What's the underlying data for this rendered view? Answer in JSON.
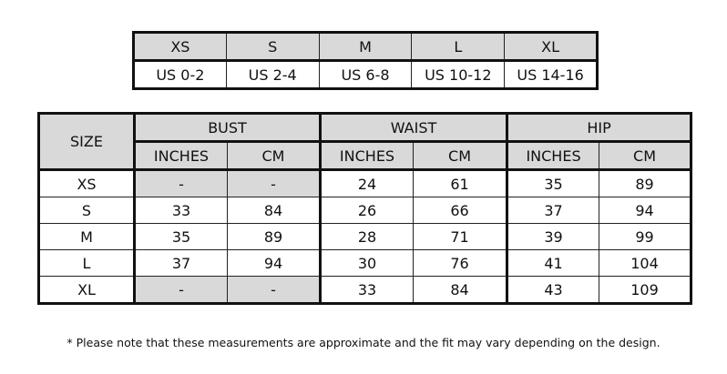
{
  "size_conversion": {
    "sizes": [
      "XS",
      "S",
      "M",
      "L",
      "XL"
    ],
    "us_sizes": [
      "US 0-2",
      "US 2-4",
      "US 6-8",
      "US 10-12",
      "US 14-16"
    ]
  },
  "measurements": {
    "size_header": "SIZE",
    "groups": [
      "BUST",
      "WAIST",
      "HIP"
    ],
    "subheaders": [
      "INCHES",
      "CM",
      "INCHES",
      "CM",
      "INCHES",
      "CM"
    ],
    "rows": [
      {
        "size": "XS",
        "values": [
          "-",
          "-",
          "24",
          "61",
          "35",
          "89"
        ]
      },
      {
        "size": "S",
        "values": [
          "33",
          "84",
          "26",
          "66",
          "37",
          "94"
        ]
      },
      {
        "size": "M",
        "values": [
          "35",
          "89",
          "28",
          "71",
          "39",
          "99"
        ]
      },
      {
        "size": "L",
        "values": [
          "37",
          "94",
          "30",
          "76",
          "41",
          "104"
        ]
      },
      {
        "size": "XL",
        "values": [
          "-",
          "-",
          "33",
          "84",
          "43",
          "109"
        ]
      }
    ],
    "unavailable_cell_color": "#d9d9d9"
  },
  "footnote": "* Please note that these measurements are approximate and the fit may vary depending on the design."
}
